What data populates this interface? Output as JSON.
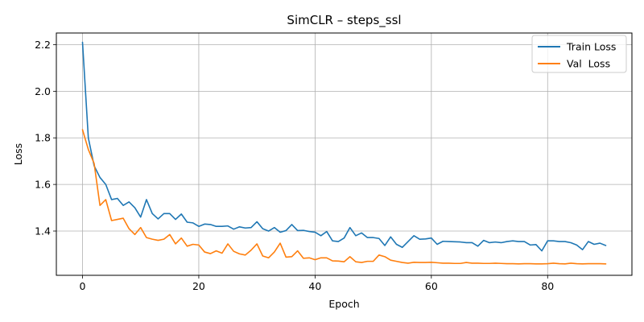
{
  "chart_data": {
    "type": "line",
    "title": "SimCLR – steps_ssl",
    "xlabel": "Epoch",
    "ylabel": "Loss",
    "xlim": [
      -4.5,
      94.5
    ],
    "ylim": [
      1.21,
      2.25
    ],
    "xticks": [
      0,
      20,
      40,
      60,
      80
    ],
    "yticks": [
      1.4,
      1.6,
      1.8,
      2.0,
      2.2
    ],
    "grid": true,
    "legend_position": "top-right",
    "x": [
      0,
      1,
      2,
      3,
      4,
      5,
      6,
      7,
      8,
      9,
      10,
      11,
      12,
      13,
      14,
      15,
      16,
      17,
      18,
      19,
      20,
      21,
      22,
      23,
      24,
      25,
      26,
      27,
      28,
      29,
      30,
      31,
      32,
      33,
      34,
      35,
      36,
      37,
      38,
      39,
      40,
      41,
      42,
      43,
      44,
      45,
      46,
      47,
      48,
      49,
      50,
      51,
      52,
      53,
      54,
      55,
      56,
      57,
      58,
      59,
      60,
      61,
      62,
      63,
      64,
      65,
      66,
      67,
      68,
      69,
      70,
      71,
      72,
      73,
      74,
      75,
      76,
      77,
      78,
      79,
      80,
      81,
      82,
      83,
      84,
      85,
      86,
      87,
      88,
      89,
      90
    ],
    "series": [
      {
        "name": "Train Loss",
        "color": "#1f77b4",
        "values": [
          2.21,
          1.8,
          1.68,
          1.63,
          1.6,
          1.535,
          1.54,
          1.51,
          1.525,
          1.5,
          1.46,
          1.535,
          1.475,
          1.452,
          1.475,
          1.475,
          1.45,
          1.473,
          1.438,
          1.435,
          1.42,
          1.43,
          1.428,
          1.42,
          1.42,
          1.422,
          1.408,
          1.418,
          1.413,
          1.415,
          1.44,
          1.41,
          1.4,
          1.415,
          1.395,
          1.402,
          1.428,
          1.402,
          1.403,
          1.398,
          1.395,
          1.38,
          1.398,
          1.358,
          1.355,
          1.37,
          1.415,
          1.38,
          1.392,
          1.372,
          1.372,
          1.368,
          1.338,
          1.375,
          1.343,
          1.33,
          1.355,
          1.38,
          1.365,
          1.366,
          1.37,
          1.343,
          1.356,
          1.355,
          1.354,
          1.353,
          1.35,
          1.35,
          1.335,
          1.36,
          1.35,
          1.353,
          1.35,
          1.355,
          1.358,
          1.355,
          1.355,
          1.34,
          1.342,
          1.315,
          1.358,
          1.358,
          1.355,
          1.355,
          1.35,
          1.34,
          1.32,
          1.355,
          1.343,
          1.348,
          1.338
        ]
      },
      {
        "name": "Val  Loss",
        "color": "#ff7f0e",
        "values": [
          1.835,
          1.75,
          1.69,
          1.51,
          1.535,
          1.445,
          1.45,
          1.455,
          1.41,
          1.385,
          1.415,
          1.372,
          1.365,
          1.36,
          1.365,
          1.385,
          1.345,
          1.37,
          1.335,
          1.343,
          1.34,
          1.31,
          1.303,
          1.315,
          1.305,
          1.345,
          1.313,
          1.302,
          1.297,
          1.318,
          1.345,
          1.293,
          1.285,
          1.31,
          1.348,
          1.288,
          1.29,
          1.315,
          1.283,
          1.285,
          1.277,
          1.285,
          1.285,
          1.272,
          1.271,
          1.268,
          1.29,
          1.268,
          1.265,
          1.27,
          1.27,
          1.297,
          1.29,
          1.275,
          1.27,
          1.265,
          1.262,
          1.266,
          1.265,
          1.265,
          1.266,
          1.264,
          1.262,
          1.262,
          1.261,
          1.261,
          1.265,
          1.262,
          1.262,
          1.261,
          1.261,
          1.262,
          1.261,
          1.26,
          1.26,
          1.259,
          1.26,
          1.26,
          1.259,
          1.259,
          1.26,
          1.262,
          1.26,
          1.259,
          1.262,
          1.26,
          1.259,
          1.26,
          1.26,
          1.26,
          1.259
        ]
      }
    ]
  }
}
